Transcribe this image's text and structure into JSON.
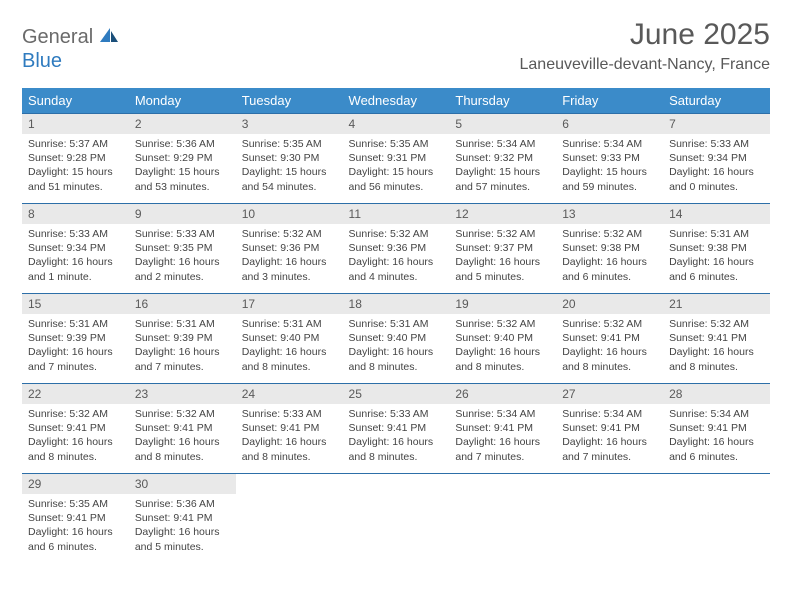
{
  "logo": {
    "general": "General",
    "blue": "Blue"
  },
  "title": "June 2025",
  "location": "Laneuveville-devant-Nancy, France",
  "colors": {
    "header_bg": "#3b8bc9",
    "daynum_bg": "#e9e9e9",
    "row_border": "#2d6fa8",
    "text": "#333333",
    "title_text": "#595959"
  },
  "day_headers": [
    "Sunday",
    "Monday",
    "Tuesday",
    "Wednesday",
    "Thursday",
    "Friday",
    "Saturday"
  ],
  "weeks": [
    [
      {
        "n": "1",
        "sr": "Sunrise: 5:37 AM",
        "ss": "Sunset: 9:28 PM",
        "dl1": "Daylight: 15 hours",
        "dl2": "and 51 minutes."
      },
      {
        "n": "2",
        "sr": "Sunrise: 5:36 AM",
        "ss": "Sunset: 9:29 PM",
        "dl1": "Daylight: 15 hours",
        "dl2": "and 53 minutes."
      },
      {
        "n": "3",
        "sr": "Sunrise: 5:35 AM",
        "ss": "Sunset: 9:30 PM",
        "dl1": "Daylight: 15 hours",
        "dl2": "and 54 minutes."
      },
      {
        "n": "4",
        "sr": "Sunrise: 5:35 AM",
        "ss": "Sunset: 9:31 PM",
        "dl1": "Daylight: 15 hours",
        "dl2": "and 56 minutes."
      },
      {
        "n": "5",
        "sr": "Sunrise: 5:34 AM",
        "ss": "Sunset: 9:32 PM",
        "dl1": "Daylight: 15 hours",
        "dl2": "and 57 minutes."
      },
      {
        "n": "6",
        "sr": "Sunrise: 5:34 AM",
        "ss": "Sunset: 9:33 PM",
        "dl1": "Daylight: 15 hours",
        "dl2": "and 59 minutes."
      },
      {
        "n": "7",
        "sr": "Sunrise: 5:33 AM",
        "ss": "Sunset: 9:34 PM",
        "dl1": "Daylight: 16 hours",
        "dl2": "and 0 minutes."
      }
    ],
    [
      {
        "n": "8",
        "sr": "Sunrise: 5:33 AM",
        "ss": "Sunset: 9:34 PM",
        "dl1": "Daylight: 16 hours",
        "dl2": "and 1 minute."
      },
      {
        "n": "9",
        "sr": "Sunrise: 5:33 AM",
        "ss": "Sunset: 9:35 PM",
        "dl1": "Daylight: 16 hours",
        "dl2": "and 2 minutes."
      },
      {
        "n": "10",
        "sr": "Sunrise: 5:32 AM",
        "ss": "Sunset: 9:36 PM",
        "dl1": "Daylight: 16 hours",
        "dl2": "and 3 minutes."
      },
      {
        "n": "11",
        "sr": "Sunrise: 5:32 AM",
        "ss": "Sunset: 9:36 PM",
        "dl1": "Daylight: 16 hours",
        "dl2": "and 4 minutes."
      },
      {
        "n": "12",
        "sr": "Sunrise: 5:32 AM",
        "ss": "Sunset: 9:37 PM",
        "dl1": "Daylight: 16 hours",
        "dl2": "and 5 minutes."
      },
      {
        "n": "13",
        "sr": "Sunrise: 5:32 AM",
        "ss": "Sunset: 9:38 PM",
        "dl1": "Daylight: 16 hours",
        "dl2": "and 6 minutes."
      },
      {
        "n": "14",
        "sr": "Sunrise: 5:31 AM",
        "ss": "Sunset: 9:38 PM",
        "dl1": "Daylight: 16 hours",
        "dl2": "and 6 minutes."
      }
    ],
    [
      {
        "n": "15",
        "sr": "Sunrise: 5:31 AM",
        "ss": "Sunset: 9:39 PM",
        "dl1": "Daylight: 16 hours",
        "dl2": "and 7 minutes."
      },
      {
        "n": "16",
        "sr": "Sunrise: 5:31 AM",
        "ss": "Sunset: 9:39 PM",
        "dl1": "Daylight: 16 hours",
        "dl2": "and 7 minutes."
      },
      {
        "n": "17",
        "sr": "Sunrise: 5:31 AM",
        "ss": "Sunset: 9:40 PM",
        "dl1": "Daylight: 16 hours",
        "dl2": "and 8 minutes."
      },
      {
        "n": "18",
        "sr": "Sunrise: 5:31 AM",
        "ss": "Sunset: 9:40 PM",
        "dl1": "Daylight: 16 hours",
        "dl2": "and 8 minutes."
      },
      {
        "n": "19",
        "sr": "Sunrise: 5:32 AM",
        "ss": "Sunset: 9:40 PM",
        "dl1": "Daylight: 16 hours",
        "dl2": "and 8 minutes."
      },
      {
        "n": "20",
        "sr": "Sunrise: 5:32 AM",
        "ss": "Sunset: 9:41 PM",
        "dl1": "Daylight: 16 hours",
        "dl2": "and 8 minutes."
      },
      {
        "n": "21",
        "sr": "Sunrise: 5:32 AM",
        "ss": "Sunset: 9:41 PM",
        "dl1": "Daylight: 16 hours",
        "dl2": "and 8 minutes."
      }
    ],
    [
      {
        "n": "22",
        "sr": "Sunrise: 5:32 AM",
        "ss": "Sunset: 9:41 PM",
        "dl1": "Daylight: 16 hours",
        "dl2": "and 8 minutes."
      },
      {
        "n": "23",
        "sr": "Sunrise: 5:32 AM",
        "ss": "Sunset: 9:41 PM",
        "dl1": "Daylight: 16 hours",
        "dl2": "and 8 minutes."
      },
      {
        "n": "24",
        "sr": "Sunrise: 5:33 AM",
        "ss": "Sunset: 9:41 PM",
        "dl1": "Daylight: 16 hours",
        "dl2": "and 8 minutes."
      },
      {
        "n": "25",
        "sr": "Sunrise: 5:33 AM",
        "ss": "Sunset: 9:41 PM",
        "dl1": "Daylight: 16 hours",
        "dl2": "and 8 minutes."
      },
      {
        "n": "26",
        "sr": "Sunrise: 5:34 AM",
        "ss": "Sunset: 9:41 PM",
        "dl1": "Daylight: 16 hours",
        "dl2": "and 7 minutes."
      },
      {
        "n": "27",
        "sr": "Sunrise: 5:34 AM",
        "ss": "Sunset: 9:41 PM",
        "dl1": "Daylight: 16 hours",
        "dl2": "and 7 minutes."
      },
      {
        "n": "28",
        "sr": "Sunrise: 5:34 AM",
        "ss": "Sunset: 9:41 PM",
        "dl1": "Daylight: 16 hours",
        "dl2": "and 6 minutes."
      }
    ],
    [
      {
        "n": "29",
        "sr": "Sunrise: 5:35 AM",
        "ss": "Sunset: 9:41 PM",
        "dl1": "Daylight: 16 hours",
        "dl2": "and 6 minutes."
      },
      {
        "n": "30",
        "sr": "Sunrise: 5:36 AM",
        "ss": "Sunset: 9:41 PM",
        "dl1": "Daylight: 16 hours",
        "dl2": "and 5 minutes."
      },
      null,
      null,
      null,
      null,
      null
    ]
  ]
}
